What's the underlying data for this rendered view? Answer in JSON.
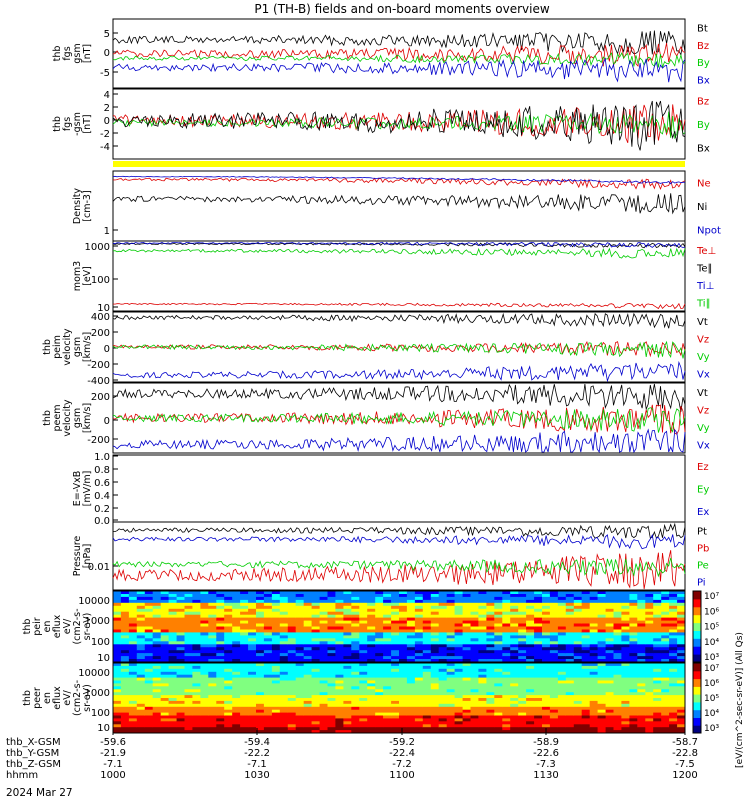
{
  "title": "P1 (TH-B) fields and on-board moments overview",
  "panels": [
    {
      "id": "fgs",
      "ylabel": [
        "thb",
        "fgs",
        "gsm",
        "[nT]"
      ],
      "yticks": [
        "5",
        "0",
        "-5"
      ],
      "series": [
        "Bt",
        "Bz",
        "By",
        "Bx"
      ],
      "colors": [
        "#000000",
        "#dd0000",
        "#00cc00",
        "#0000cc"
      ]
    },
    {
      "id": "fgl",
      "ylabel": [
        "thb",
        "fgs",
        "-gsm",
        "[nT]"
      ],
      "yticks": [
        "4",
        "2",
        "0",
        "-2",
        "-4"
      ],
      "series": [
        "Bz",
        "By",
        "Bx"
      ],
      "colors": [
        "#dd0000",
        "#00cc00",
        "#000000"
      ]
    },
    {
      "id": "density",
      "ylabel": [
        "Density",
        "[cm-3]"
      ],
      "yticks": [
        "1"
      ],
      "series": [
        "Ne",
        "Ni",
        "Npot"
      ],
      "colors": [
        "#dd0000",
        "#000000",
        "#0000cc"
      ]
    },
    {
      "id": "temp",
      "ylabel": [
        "mom3",
        "[eV]"
      ],
      "yticks": [
        "1000",
        "100",
        "10"
      ],
      "series": [
        "Te⊥",
        "Te∥",
        "Ti⊥",
        "Ti∥"
      ],
      "colors": [
        "#dd0000",
        "#000000",
        "#0000cc",
        "#00cc00"
      ]
    },
    {
      "id": "vi",
      "ylabel": [
        "thb",
        "peim",
        "velocity",
        "gsm",
        "[km/s]"
      ],
      "yticks": [
        "400",
        "200",
        "0",
        "-200",
        "-400"
      ],
      "series": [
        "Vt",
        "Vz",
        "Vy",
        "Vx"
      ],
      "colors": [
        "#000000",
        "#dd0000",
        "#00cc00",
        "#0000cc"
      ]
    },
    {
      "id": "ve",
      "ylabel": [
        "thb",
        "peem",
        "velocity",
        "gsm",
        "[km/s]"
      ],
      "yticks": [
        "200",
        "0",
        "-200"
      ],
      "series": [
        "Vt",
        "Vz",
        "Vy",
        "Vx"
      ],
      "colors": [
        "#000000",
        "#dd0000",
        "#00cc00",
        "#0000cc"
      ]
    },
    {
      "id": "efield",
      "ylabel": [
        "E=-VxB",
        "[mV/m]"
      ],
      "yticks": [
        "1.0",
        "0.8",
        "0.6",
        "0.4",
        "0.2",
        "0.0"
      ],
      "series": [
        "Ez",
        "Ey",
        "Ex"
      ],
      "colors": [
        "#dd0000",
        "#00cc00",
        "#0000cc"
      ]
    },
    {
      "id": "pressure",
      "ylabel": [
        "Pressure",
        "[nPa]"
      ],
      "yticks": [
        "0.01"
      ],
      "series": [
        "Pt",
        "Pb",
        "Pe",
        "Pi"
      ],
      "colors": [
        "#000000",
        "#dd0000",
        "#00cc00",
        "#0000cc"
      ]
    },
    {
      "id": "ion_spec",
      "ylabel": [
        "thb",
        "peir",
        "en",
        "eflux",
        "eV/",
        "(cm2-s-",
        "sr-eV)"
      ],
      "yticks": [
        "10000",
        "1000",
        "100",
        "10"
      ]
    },
    {
      "id": "ele_spec",
      "ylabel": [
        "thb",
        "peer",
        "en",
        "eflux",
        "eV/",
        "(cm2-s-",
        "sr-eV)"
      ],
      "yticks": [
        "10000",
        "1000",
        "100",
        "10"
      ]
    }
  ],
  "colorbars": [
    {
      "ticks": [
        "10⁷",
        "10⁶",
        "10⁵",
        "10⁴",
        "10³"
      ],
      "label": "[eV/(cm^2-sec-sr-eV)] (All Qs)"
    },
    {
      "ticks": [
        "10⁷",
        "10⁶",
        "10⁵",
        "10⁴",
        "10³"
      ],
      "label": "[eV/(cm^2-sec-sr-eV)]"
    }
  ],
  "xaxis": {
    "rows": [
      {
        "label": "thb_X-GSM",
        "values": [
          "-59.6",
          "-59.4",
          "-59.2",
          "-58.9",
          "-58.7"
        ]
      },
      {
        "label": "thb_Y-GSM",
        "values": [
          "-21.9",
          "-22.2",
          "-22.4",
          "-22.6",
          "-22.8"
        ]
      },
      {
        "label": "thb_Z-GSM",
        "values": [
          "-7.1",
          "-7.1",
          "-7.2",
          "-7.3",
          "-7.5"
        ]
      },
      {
        "label": "hhmm",
        "values": [
          "1000",
          "1030",
          "1100",
          "1130",
          "1200"
        ]
      }
    ],
    "date": "2024 Mar 27"
  },
  "colors": {
    "yellow_bar": "#ffff00"
  },
  "chart_data": {
    "type": "line",
    "x": [
      "1000",
      "1030",
      "1100",
      "1130",
      "1200"
    ],
    "xlabel": "hhmm",
    "series": [
      {
        "name": "Bt",
        "values": [
          3.5,
          4.0,
          4.5,
          5.5,
          7.0
        ]
      },
      {
        "name": "Bz",
        "values": [
          1.5,
          1.5,
          1.0,
          1.0,
          0.5
        ]
      },
      {
        "name": "By",
        "values": [
          0.0,
          0.0,
          -0.5,
          -1.0,
          -1.0
        ]
      },
      {
        "name": "Bx",
        "values": [
          -3.0,
          -3.0,
          -4.0,
          -4.5,
          -5.0
        ]
      }
    ]
  }
}
